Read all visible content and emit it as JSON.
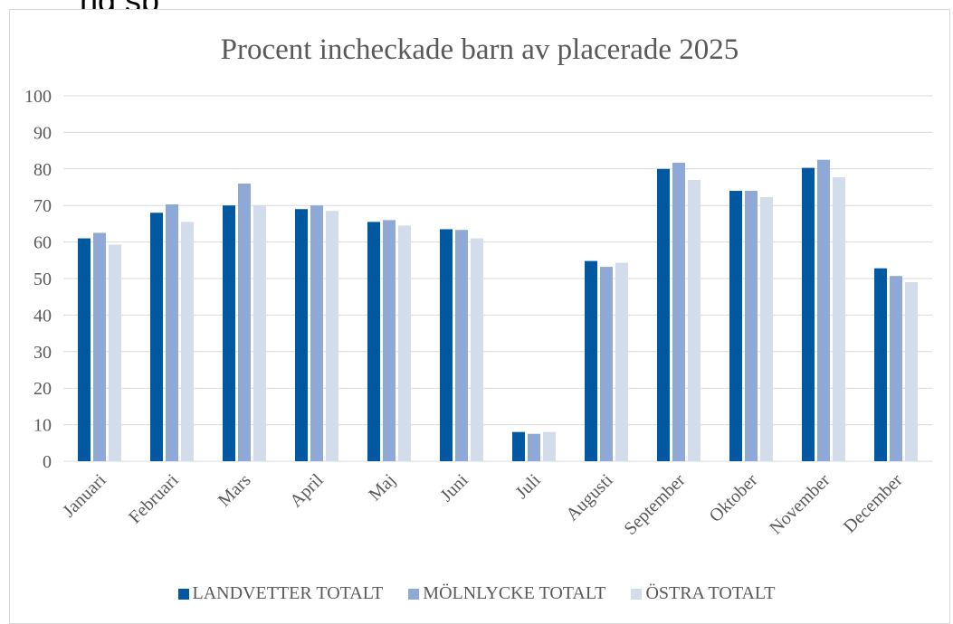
{
  "page_heading_fragment": "ng sp",
  "chart_data": {
    "type": "bar",
    "title": "Procent incheckade barn av placerade 2025",
    "xlabel": "",
    "ylabel": "",
    "ylim": [
      0,
      100
    ],
    "yticks": [
      0,
      10,
      20,
      30,
      40,
      50,
      60,
      70,
      80,
      90,
      100
    ],
    "grid": true,
    "legend_position": "bottom",
    "categories": [
      "Januari",
      "Februari",
      "Mars",
      "April",
      "Maj",
      "Juni",
      "Juli",
      "Augusti",
      "September",
      "Oktober",
      "November",
      "December"
    ],
    "series": [
      {
        "name": "LANDVETTER TOTALT",
        "color": "#0059a0",
        "values": [
          61,
          68,
          70,
          69,
          65.5,
          63.5,
          8,
          54.8,
          80,
          74,
          80.3,
          52.8
        ]
      },
      {
        "name": "MÖLNLYCKE TOTALT",
        "color": "#8ea9d6",
        "values": [
          62.5,
          70.3,
          76,
          70,
          66,
          63.3,
          7.5,
          53.2,
          81.7,
          74,
          82.5,
          50.7
        ]
      },
      {
        "name": "ÖSTRA TOTALT",
        "color": "#d3dcea",
        "values": [
          59.3,
          65.5,
          70,
          68.5,
          64.5,
          61,
          8,
          54.3,
          77,
          72.3,
          77.7,
          49
        ]
      }
    ]
  }
}
